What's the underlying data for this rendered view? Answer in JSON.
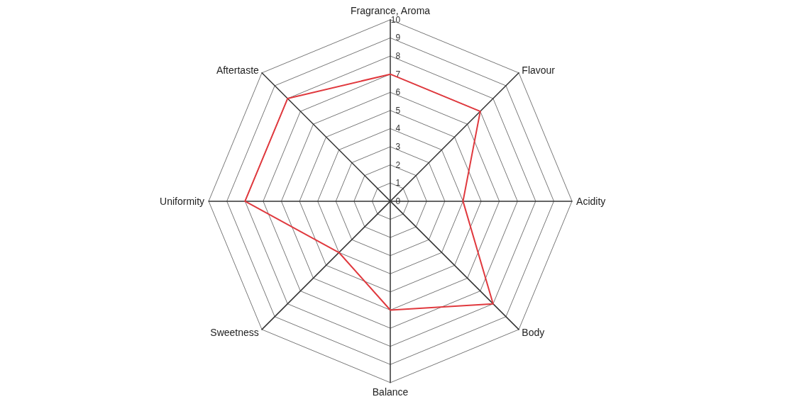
{
  "chart_data": {
    "type": "radar",
    "categories": [
      "Fragrance, Aroma",
      "Flavour",
      "Acidity",
      "Body",
      "Balance",
      "Sweetness",
      "Uniformity",
      "Aftertaste"
    ],
    "series": [
      {
        "color": "#e0393e",
        "values": [
          7,
          7,
          4,
          8,
          6,
          4,
          8,
          8
        ]
      }
    ],
    "ylim": [
      0,
      10
    ],
    "yticks": [
      0,
      1,
      2,
      3,
      4,
      5,
      6,
      7,
      8,
      9,
      10
    ],
    "grid": true,
    "marker": "none",
    "line_style": "solid"
  }
}
